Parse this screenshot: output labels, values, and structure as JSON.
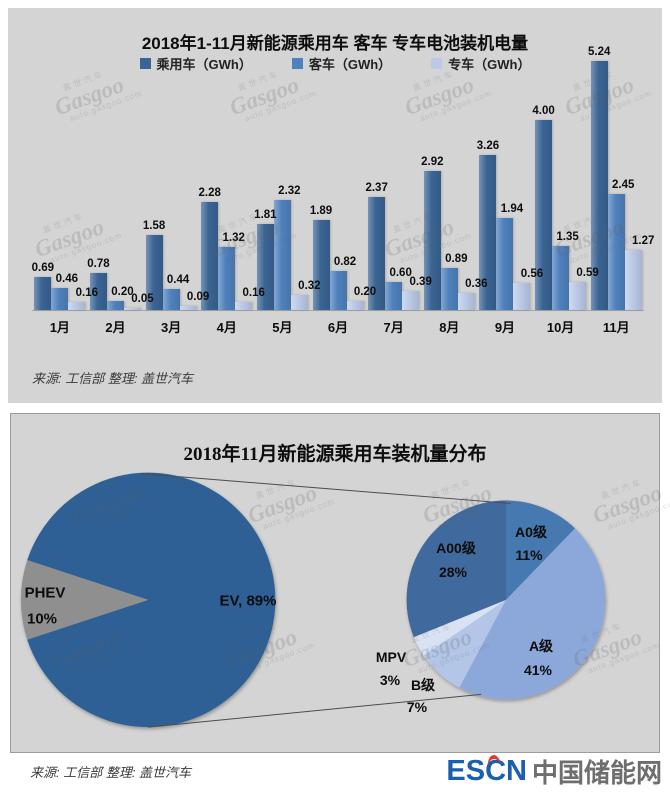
{
  "chart_data": [
    {
      "type": "bar",
      "title": "2018年1-11月新能源乘用车 客车 专车电池装机电量",
      "source": "来源: 工信部 整理: 盖世汽车",
      "categories": [
        "1月",
        "2月",
        "3月",
        "4月",
        "5月",
        "6月",
        "7月",
        "8月",
        "9月",
        "10月",
        "11月"
      ],
      "series": [
        {
          "name": "乘用车（GWh）",
          "color": "#3a6494",
          "values": [
            0.69,
            0.78,
            1.58,
            2.28,
            1.81,
            1.89,
            2.37,
            2.92,
            3.26,
            4.0,
            5.24
          ]
        },
        {
          "name": "客车（GWh）",
          "color": "#4f81bd",
          "values": [
            0.46,
            0.2,
            0.44,
            1.32,
            2.32,
            0.82,
            0.6,
            0.89,
            1.94,
            1.35,
            2.45
          ]
        },
        {
          "name": "专车（GWh）",
          "color": "#b9c9e6",
          "values": [
            0.16,
            0.05,
            0.09,
            0.16,
            0.32,
            0.2,
            0.39,
            0.36,
            0.56,
            0.59,
            1.27
          ]
        }
      ],
      "ylim": [
        0,
        5.5
      ],
      "grid": false,
      "legend_position": "top",
      "value_labels": true
    },
    {
      "type": "pie",
      "title": "2018年11月新能源乘用车装机量分布",
      "source": "来源: 工信部 整理: 盖世汽车",
      "pies": [
        {
          "name": "powertrain-split",
          "start_angle": 288.2,
          "slices": [
            {
              "label": "EV",
              "pct": 89,
              "color": "#2d6095",
              "text": "EV, 89%"
            },
            {
              "label": "PHEV",
              "pct": 10,
              "color": "#8f8f8f",
              "pct_text": "10%"
            }
          ]
        },
        {
          "name": "ev-segment-split",
          "start_angle": 0,
          "slices": [
            {
              "label": "A0级",
              "pct": 11,
              "color": "#4579af",
              "pct_text": "11%"
            },
            {
              "label": "A级",
              "pct": 41,
              "color": "#8ca7d9",
              "pct_text": "41%"
            },
            {
              "label": "B级",
              "pct": 7,
              "color": "#b3c6e7",
              "pct_text": "7%"
            },
            {
              "label": "MPV",
              "pct": 3,
              "color": "#d9e2f3",
              "pct_text": "3%"
            },
            {
              "label": "A00级",
              "pct": 28,
              "color": "#3f6a9d",
              "pct_text": "28%"
            }
          ]
        }
      ]
    }
  ],
  "watermark": {
    "cn": "盖世汽车",
    "en": "Gasgoo",
    "url": "auto.gasgoo.com"
  },
  "footer": {
    "logo_en": "ESCN",
    "logo_cn": "中国储能网"
  }
}
